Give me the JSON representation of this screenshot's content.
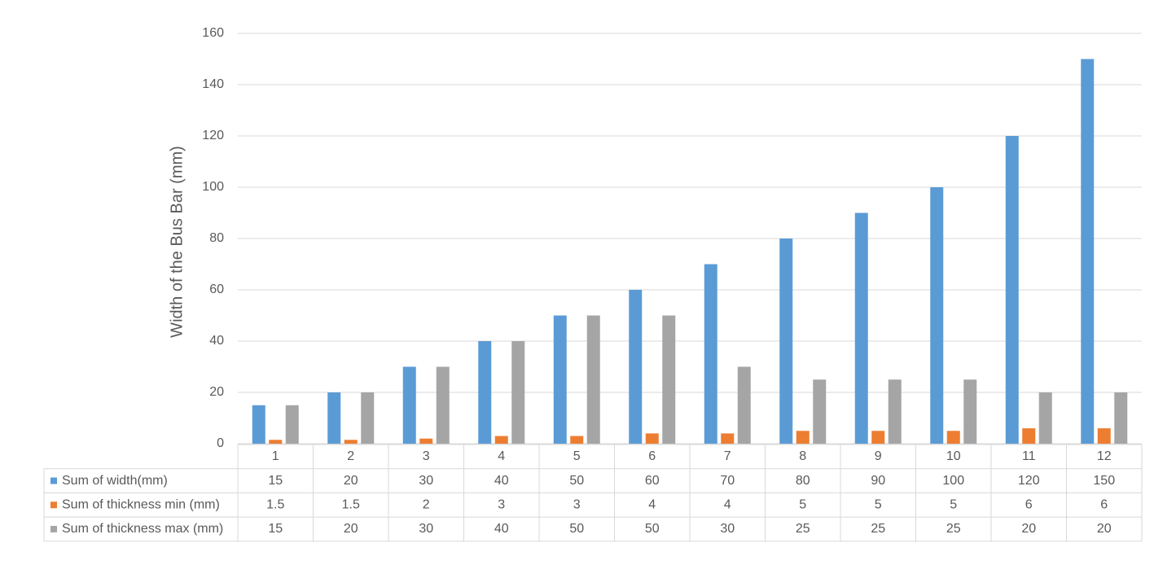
{
  "chart_data": {
    "type": "bar",
    "y_label": "Width of the Bus Bar (mm)",
    "categories": [
      "1",
      "2",
      "3",
      "4",
      "5",
      "6",
      "7",
      "8",
      "9",
      "10",
      "11",
      "12"
    ],
    "series": [
      {
        "name": "Sum of width(mm)",
        "color": "#5b9bd5",
        "values": [
          15,
          20,
          30,
          40,
          50,
          60,
          70,
          80,
          90,
          100,
          120,
          150
        ]
      },
      {
        "name": "Sum of thickness min (mm)",
        "color": "#ed7d31",
        "values": [
          1.5,
          1.5,
          2,
          3,
          3,
          4,
          4,
          5,
          5,
          5,
          6,
          6
        ]
      },
      {
        "name": "Sum of thickness max (mm)",
        "color": "#a5a5a5",
        "values": [
          15,
          20,
          30,
          40,
          50,
          50,
          30,
          25,
          25,
          25,
          20,
          20
        ]
      }
    ],
    "ylim": [
      0,
      160
    ],
    "yticks": [
      0,
      20,
      40,
      60,
      80,
      100,
      120,
      140,
      160
    ],
    "grid": true
  }
}
